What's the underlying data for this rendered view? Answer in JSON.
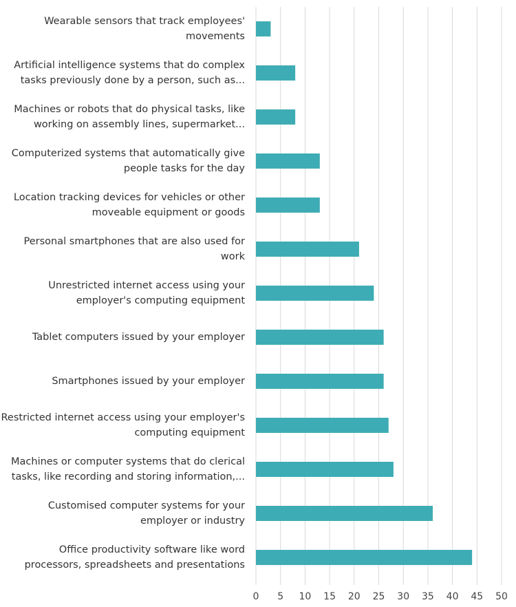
{
  "chart_data": {
    "type": "barh",
    "categories": [
      "Wearable sensors that track employees' movements",
      "Artificial intelligence systems that do complex tasks previously done by a person, such as...",
      "Machines or robots that do physical tasks, like working on assembly lines, supermarket...",
      "Computerized systems that automatically give people tasks for the day",
      "Location tracking devices for vehicles or other moveable equipment or goods",
      "Personal smartphones that are also used for work",
      "Unrestricted internet access using your employer's computing equipment",
      "Tablet computers issued by your employer",
      "Smartphones issued by your employer",
      "Restricted internet access using your employer's computing equipment",
      "Machines or computer systems that do clerical tasks, like recording and storing information,...",
      "Customised computer systems for your employer or industry",
      "Office productivity software like word processors, spreadsheets and presentations"
    ],
    "values": [
      3,
      8,
      8,
      13,
      13,
      21,
      24,
      26,
      26,
      27,
      28,
      36,
      44
    ],
    "color": "#3eacb4",
    "xlim": [
      0,
      50
    ],
    "xticks": [
      0,
      5,
      10,
      15,
      20,
      25,
      30,
      35,
      40,
      45,
      50
    ],
    "grid": true
  }
}
